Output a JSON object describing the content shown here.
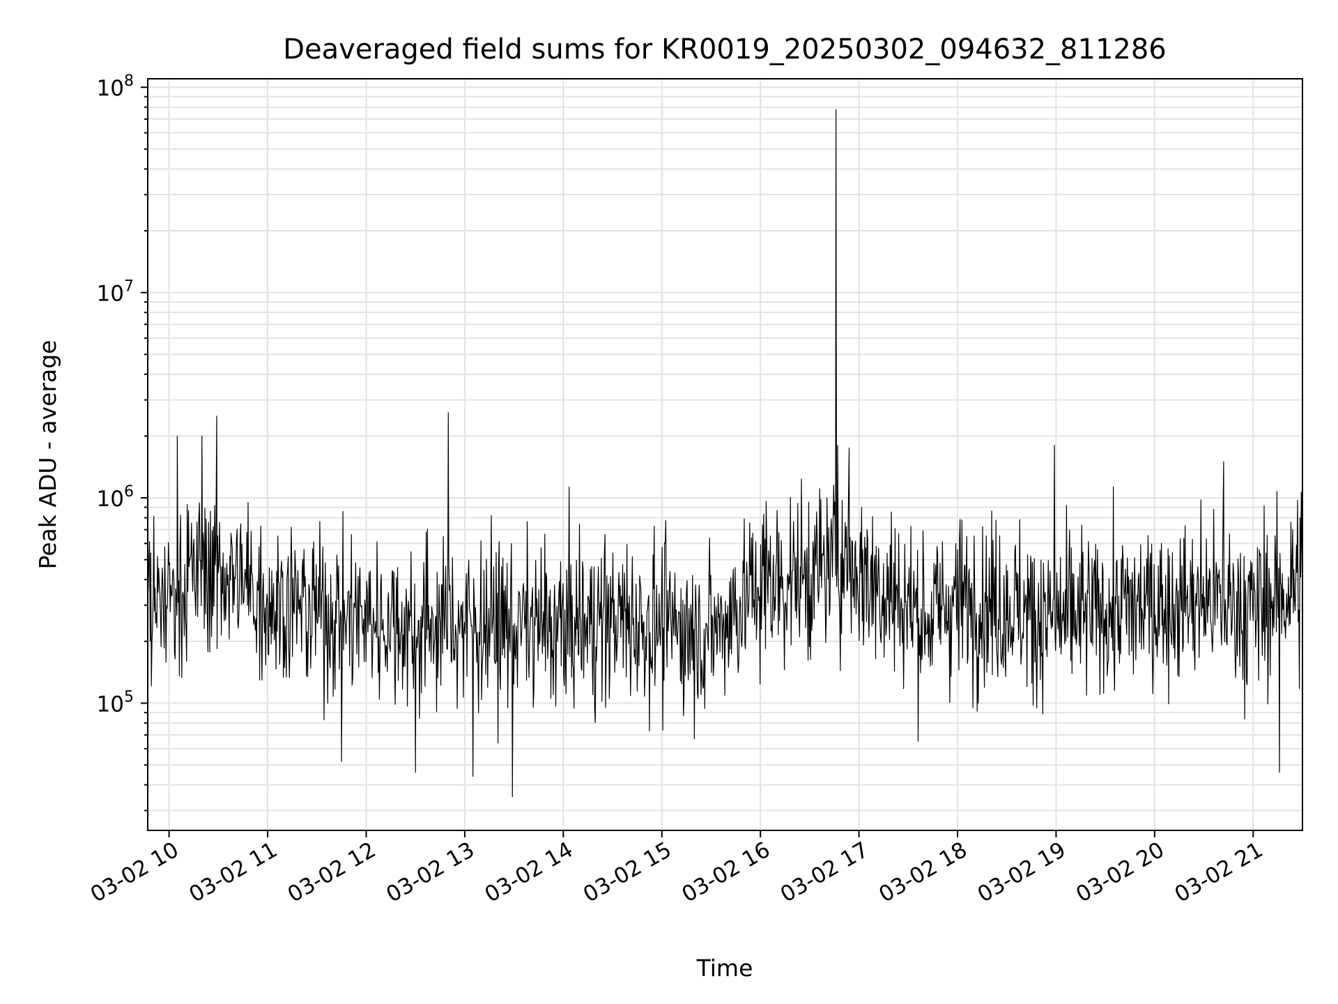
{
  "chart_data": {
    "type": "line",
    "title": "Deaveraged field sums for KR0019_20250302_094632_811286",
    "xlabel": "Time",
    "ylabel": "Peak ADU - average",
    "yscale": "log",
    "ylim": [
      24000,
      110000000
    ],
    "xlim": [
      "03-02 09:47",
      "03-02 21:30"
    ],
    "grid": true,
    "line_color": "#000000",
    "x_ticks": [
      {
        "t": "03-02 10:00",
        "label": "03-02 10"
      },
      {
        "t": "03-02 11:00",
        "label": "03-02 11"
      },
      {
        "t": "03-02 12:00",
        "label": "03-02 12"
      },
      {
        "t": "03-02 13:00",
        "label": "03-02 13"
      },
      {
        "t": "03-02 14:00",
        "label": "03-02 14"
      },
      {
        "t": "03-02 15:00",
        "label": "03-02 15"
      },
      {
        "t": "03-02 16:00",
        "label": "03-02 16"
      },
      {
        "t": "03-02 17:00",
        "label": "03-02 17"
      },
      {
        "t": "03-02 18:00",
        "label": "03-02 18"
      },
      {
        "t": "03-02 19:00",
        "label": "03-02 19"
      },
      {
        "t": "03-02 20:00",
        "label": "03-02 20"
      },
      {
        "t": "03-02 21:00",
        "label": "03-02 21"
      }
    ],
    "y_ticks": [
      {
        "value": 100000,
        "base": "10",
        "exp": "5"
      },
      {
        "value": 1000000,
        "base": "10",
        "exp": "6"
      },
      {
        "value": 10000000,
        "base": "10",
        "exp": "7"
      },
      {
        "value": 100000000,
        "base": "10",
        "exp": "8"
      }
    ],
    "series": [
      {
        "baseline": [
          [
            "03-02 09:47",
            280000
          ],
          [
            "03-02 10:20",
            450000
          ],
          [
            "03-02 10:30",
            450000
          ],
          [
            "03-02 11:00",
            320000
          ],
          [
            "03-02 11:30",
            280000
          ],
          [
            "03-02 12:00",
            260000
          ],
          [
            "03-02 12:30",
            240000
          ],
          [
            "03-02 13:00",
            250000
          ],
          [
            "03-02 13:30",
            240000
          ],
          [
            "03-02 14:00",
            230000
          ],
          [
            "03-02 14:30",
            260000
          ],
          [
            "03-02 15:00",
            240000
          ],
          [
            "03-02 15:30",
            220000
          ],
          [
            "03-02 16:00",
            380000
          ],
          [
            "03-02 16:30",
            420000
          ],
          [
            "03-02 16:50",
            500000
          ],
          [
            "03-02 17:20",
            340000
          ],
          [
            "03-02 17:40",
            260000
          ],
          [
            "03-02 18:00",
            320000
          ],
          [
            "03-02 18:30",
            300000
          ],
          [
            "03-02 19:00",
            250000
          ],
          [
            "03-02 19:30",
            280000
          ],
          [
            "03-02 20:00",
            300000
          ],
          [
            "03-02 20:30",
            320000
          ],
          [
            "03-02 21:00",
            280000
          ],
          [
            "03-02 21:30",
            400000
          ]
        ],
        "spikes": [
          [
            "03-02 16:46",
            78000000
          ],
          [
            "03-02 12:50",
            2600000
          ],
          [
            "03-02 10:29",
            2500000
          ],
          [
            "03-02 10:05",
            2000000
          ],
          [
            "03-02 10:20",
            2000000
          ],
          [
            "03-02 18:59",
            1800000
          ],
          [
            "03-02 16:47",
            1800000
          ],
          [
            "03-02 16:54",
            1750000
          ],
          [
            "03-02 20:42",
            1500000
          ],
          [
            "03-02 13:29",
            35000
          ],
          [
            "03-02 13:05",
            44000
          ],
          [
            "03-02 21:16",
            46000
          ],
          [
            "03-02 12:30",
            46000
          ],
          [
            "03-02 11:45",
            52000
          ]
        ]
      }
    ]
  }
}
